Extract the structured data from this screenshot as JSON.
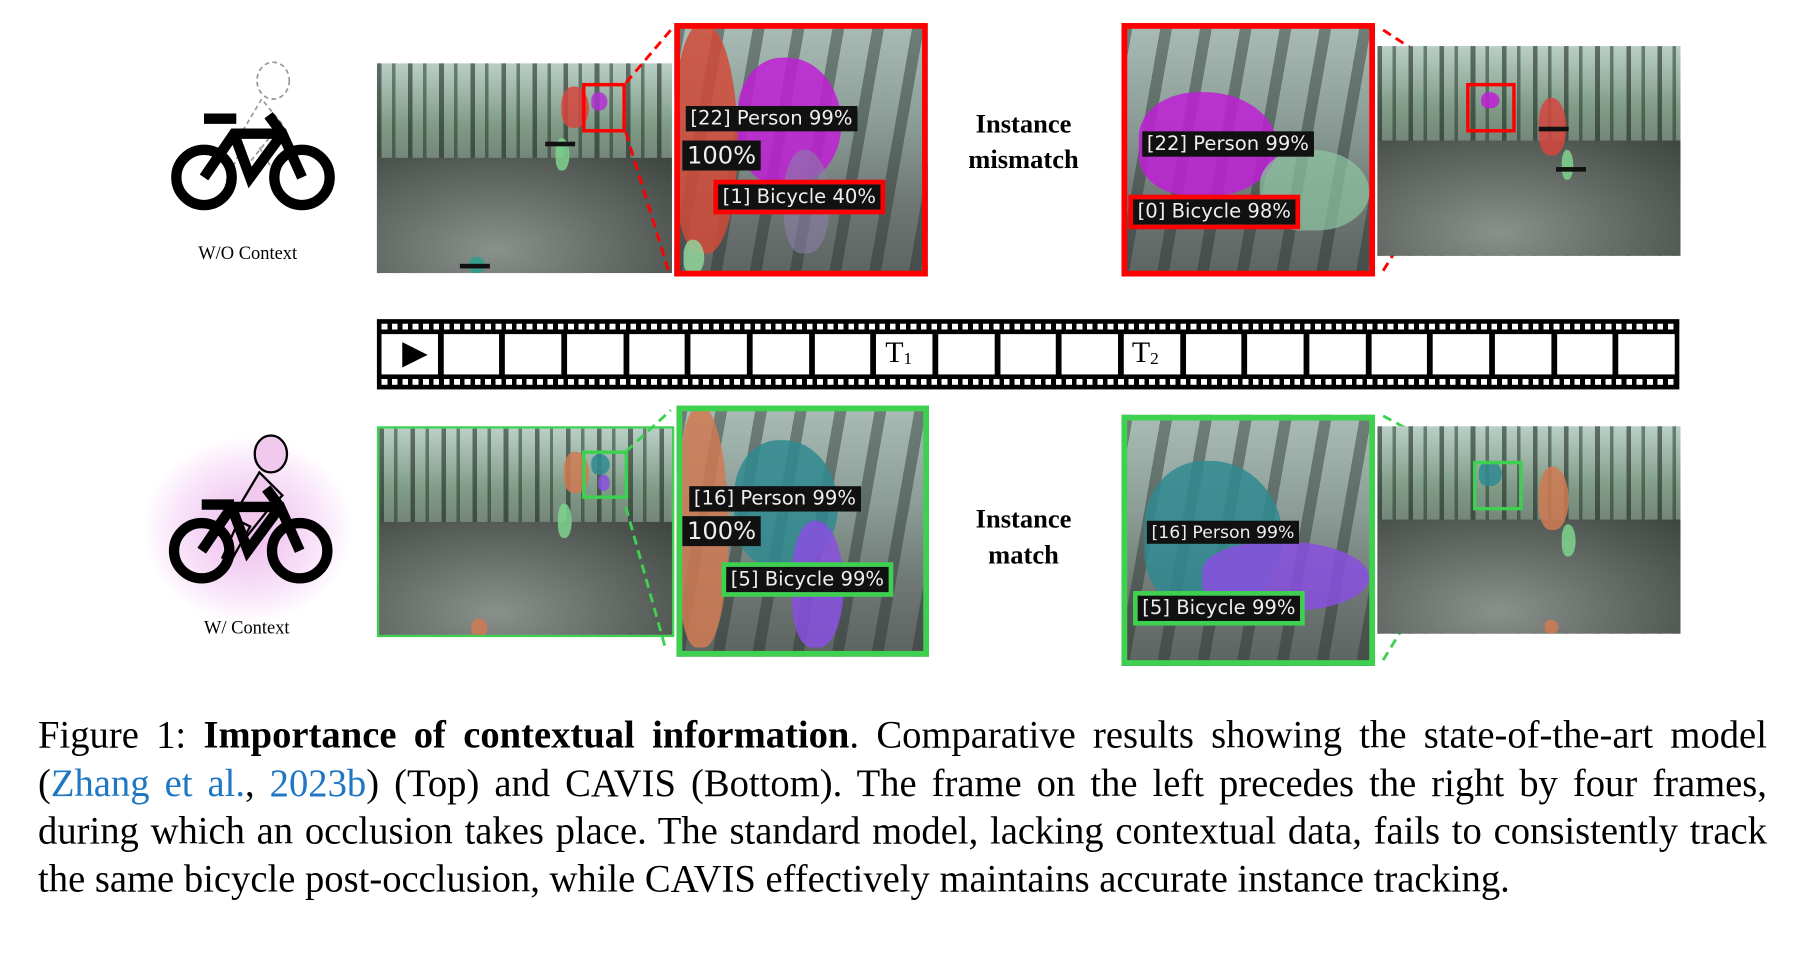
{
  "top_row": {
    "context_label": "W/O Context",
    "left_zoom": {
      "person_label": "[22] Person 99%",
      "score_label": "100%",
      "bicycle_label": "[1] Bicycle 40%"
    },
    "middle_label_line1": "Instance",
    "middle_label_line2": "mismatch",
    "right_zoom": {
      "person_label": "[22] Person 99%",
      "bicycle_label": "[0] Bicycle 98%"
    },
    "highlight_color": "#ff0000"
  },
  "timeline": {
    "t1_main": "T",
    "t1_sub": "1",
    "t2_main": "T",
    "t2_sub": "2",
    "play_icon": "play-icon"
  },
  "bottom_row": {
    "context_label": "W/ Context",
    "left_zoom": {
      "person_label": "[16] Person 99%",
      "score_label": "100%",
      "bicycle_label": "[5] Bicycle 99%"
    },
    "middle_label_line1": "Instance",
    "middle_label_line2": "match",
    "right_zoom": {
      "person_label": "[16] Person 99%",
      "bicycle_label": "[5] Bicycle 99%"
    },
    "highlight_color": "#3ed150"
  },
  "caption": {
    "prefix": "Figure 1: ",
    "title": "Importance of contextual information",
    "part1": ". Comparative results showing the state-of-the-art model (",
    "cite_author": "Zhang et al.",
    "cite_sep": ", ",
    "cite_year": "2023b",
    "part2": ") (Top) and CAVIS (Bottom). The frame on the left precedes the right by four frames, during which an occlusion takes place. The standard model, lacking contextual data, fails to consistently track the same bicycle post-occlusion, while CAVIS effectively maintains accurate instance tracking."
  }
}
